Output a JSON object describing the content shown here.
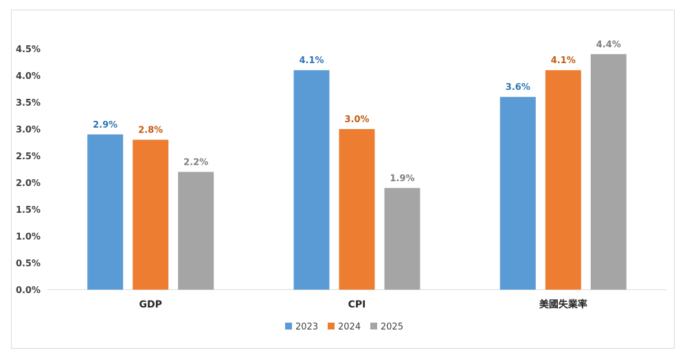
{
  "chart_data": {
    "type": "bar",
    "categories": [
      "GDP",
      "CPI",
      "美國失業率"
    ],
    "series": [
      {
        "name": "2023",
        "values": [
          2.9,
          4.1,
          3.6
        ],
        "labels": [
          "2.9%",
          "4.1%",
          "3.6%"
        ],
        "color": "#5B9BD5",
        "label_color": "#2E75B6"
      },
      {
        "name": "2024",
        "values": [
          2.8,
          3.0,
          4.1
        ],
        "labels": [
          "2.8%",
          "3.0%",
          "4.1%"
        ],
        "color": "#ED7D31",
        "label_color": "#C55A11"
      },
      {
        "name": "2025",
        "values": [
          2.2,
          1.9,
          4.4
        ],
        "labels": [
          "2.2%",
          "1.9%",
          "4.4%"
        ],
        "color": "#A5A5A5",
        "label_color": "#7F7F7F"
      }
    ],
    "yticks": [
      "0.0%",
      "0.5%",
      "1.0%",
      "1.5%",
      "2.0%",
      "2.5%",
      "3.0%",
      "3.5%",
      "4.0%",
      "4.5%"
    ],
    "ylim": [
      0,
      4.5
    ],
    "grid": false,
    "legend_position": "bottom"
  }
}
